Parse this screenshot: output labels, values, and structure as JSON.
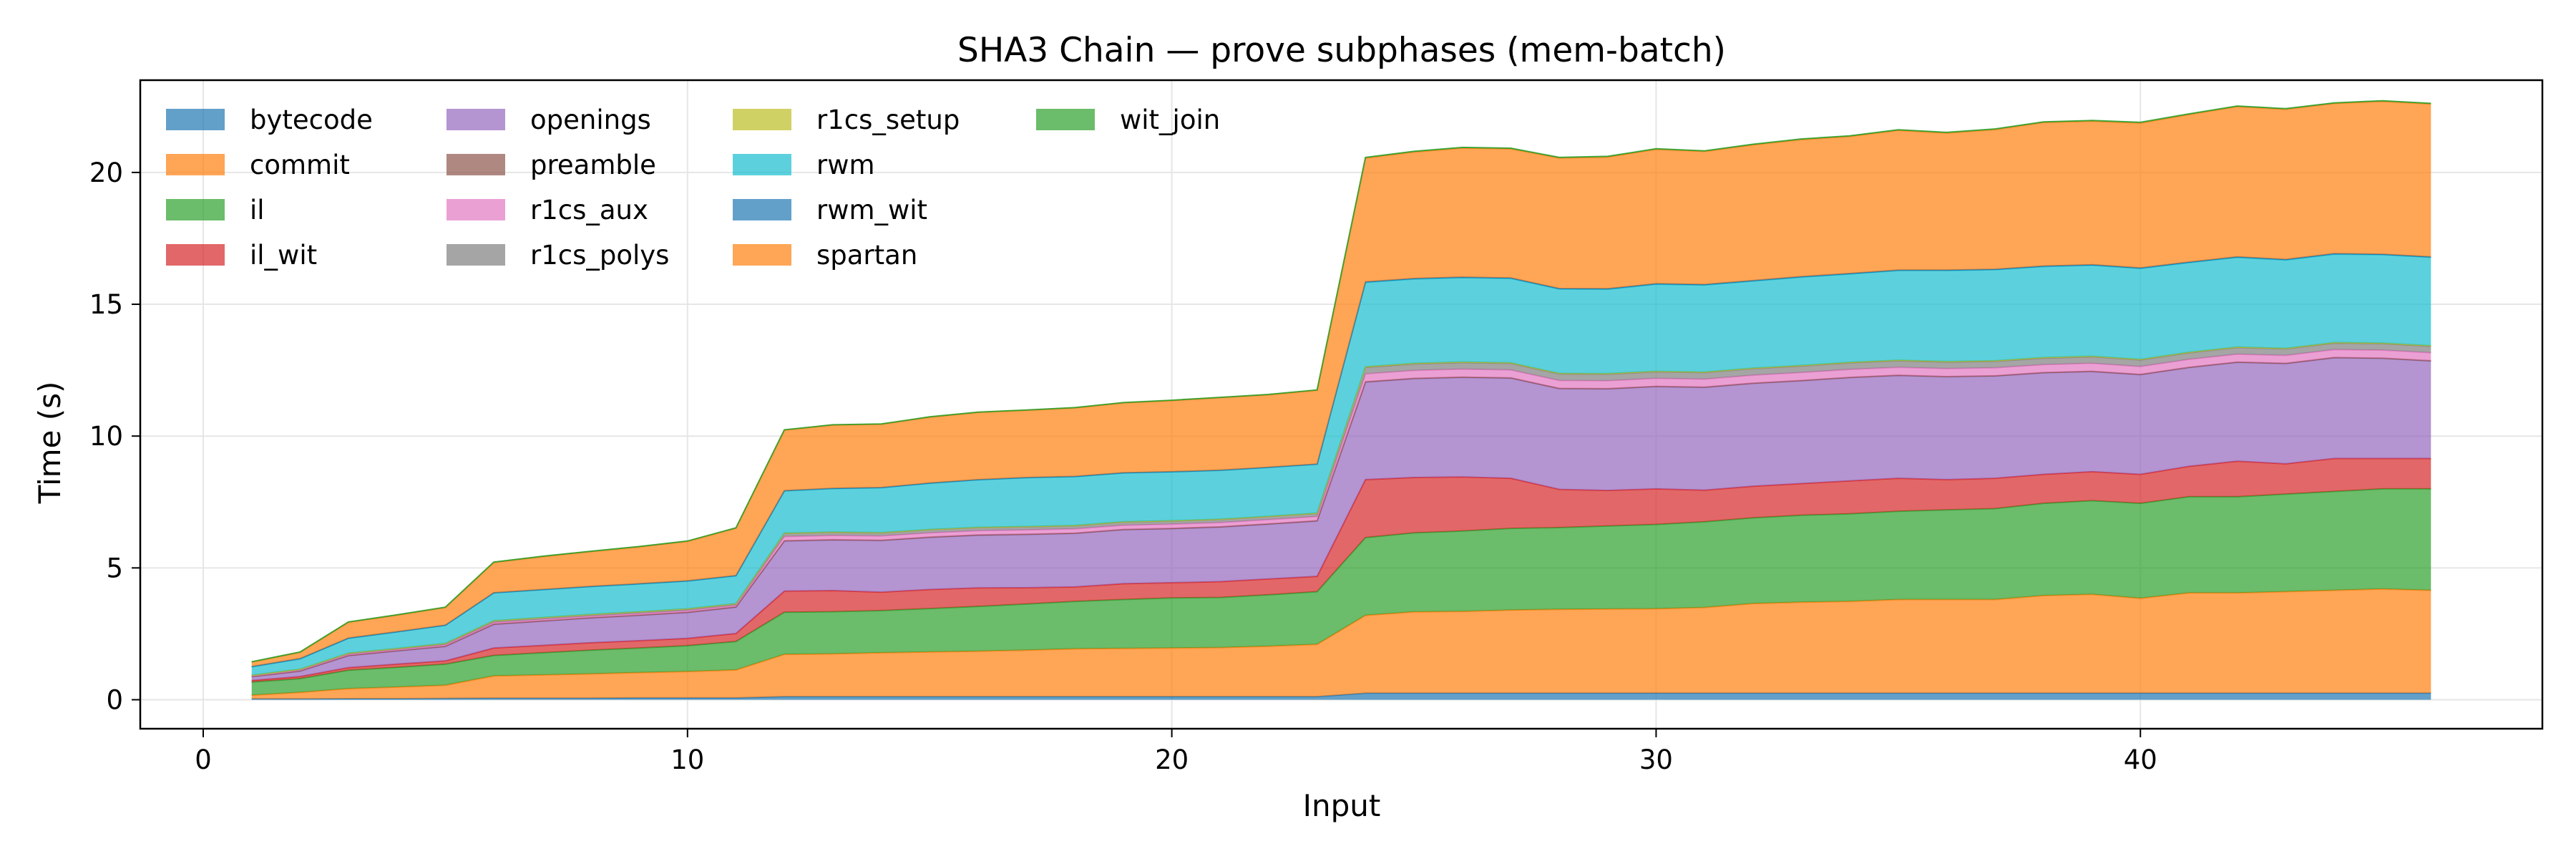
{
  "chart_data": {
    "type": "area",
    "stacked": true,
    "title": "SHA3 Chain — prove subphases (mem-batch)",
    "xlabel": "Input",
    "ylabel": "Time (s)",
    "xlim": [
      -1.3,
      48.3
    ],
    "ylim": [
      -1.1,
      23.5
    ],
    "xticks": [
      0,
      10,
      20,
      30,
      40
    ],
    "yticks": [
      0,
      5,
      10,
      15,
      20
    ],
    "grid": true,
    "legend_position": "top-left",
    "x": [
      1,
      2,
      3,
      4,
      5,
      6,
      7,
      8,
      9,
      10,
      11,
      12,
      13,
      14,
      15,
      16,
      17,
      18,
      19,
      20,
      21,
      22,
      23,
      24,
      25,
      26,
      27,
      28,
      29,
      30,
      31,
      32,
      33,
      34,
      35,
      36,
      37,
      38,
      39,
      40,
      41,
      42,
      43,
      44,
      45,
      46
    ],
    "series": [
      {
        "name": "bytecode",
        "color": "#1f77b4",
        "values": [
          0.03,
          0.03,
          0.04,
          0.04,
          0.05,
          0.06,
          0.06,
          0.06,
          0.07,
          0.07,
          0.07,
          0.12,
          0.12,
          0.12,
          0.12,
          0.12,
          0.12,
          0.12,
          0.12,
          0.12,
          0.12,
          0.12,
          0.12,
          0.25,
          0.25,
          0.25,
          0.25,
          0.25,
          0.25,
          0.25,
          0.25,
          0.25,
          0.25,
          0.25,
          0.25,
          0.25,
          0.25,
          0.25,
          0.25,
          0.25,
          0.25,
          0.25,
          0.25,
          0.25,
          0.25,
          0.25
        ]
      },
      {
        "name": "commit",
        "color": "#ff7f0e",
        "values": [
          0.14,
          0.25,
          0.38,
          0.44,
          0.5,
          0.84,
          0.88,
          0.92,
          0.96,
          1.0,
          1.06,
          1.6,
          1.62,
          1.66,
          1.69,
          1.72,
          1.76,
          1.81,
          1.83,
          1.84,
          1.86,
          1.91,
          1.98,
          2.95,
          3.08,
          3.1,
          3.15,
          3.18,
          3.19,
          3.2,
          3.25,
          3.4,
          3.45,
          3.48,
          3.55,
          3.55,
          3.55,
          3.7,
          3.75,
          3.6,
          3.8,
          3.8,
          3.85,
          3.9,
          3.95,
          3.9
        ]
      },
      {
        "name": "il",
        "color": "#2ca02c",
        "values": [
          0.5,
          0.52,
          0.7,
          0.75,
          0.8,
          0.78,
          0.84,
          0.9,
          0.93,
          0.98,
          1.08,
          1.6,
          1.6,
          1.6,
          1.65,
          1.7,
          1.75,
          1.8,
          1.85,
          1.9,
          1.9,
          1.95,
          2.0,
          2.95,
          3.0,
          3.05,
          3.1,
          3.1,
          3.15,
          3.2,
          3.25,
          3.25,
          3.3,
          3.32,
          3.35,
          3.4,
          3.45,
          3.5,
          3.55,
          3.6,
          3.65,
          3.65,
          3.7,
          3.75,
          3.8,
          3.85
        ]
      },
      {
        "name": "il_wit",
        "color": "#d62728",
        "values": [
          0.06,
          0.08,
          0.1,
          0.12,
          0.12,
          0.28,
          0.28,
          0.28,
          0.28,
          0.28,
          0.3,
          0.8,
          0.8,
          0.7,
          0.72,
          0.7,
          0.62,
          0.55,
          0.6,
          0.58,
          0.6,
          0.6,
          0.58,
          2.2,
          2.1,
          2.05,
          1.9,
          1.45,
          1.35,
          1.35,
          1.2,
          1.2,
          1.2,
          1.25,
          1.25,
          1.15,
          1.15,
          1.1,
          1.1,
          1.1,
          1.15,
          1.35,
          1.15,
          1.25,
          1.15,
          1.15
        ]
      },
      {
        "name": "openings",
        "color": "#9467bd",
        "values": [
          0.14,
          0.2,
          0.45,
          0.5,
          0.55,
          0.9,
          0.92,
          0.94,
          0.96,
          0.98,
          1.0,
          1.9,
          1.92,
          1.96,
          1.98,
          2.0,
          2.02,
          2.03,
          2.05,
          2.05,
          2.07,
          2.08,
          2.1,
          3.7,
          3.75,
          3.78,
          3.8,
          3.82,
          3.85,
          3.88,
          3.9,
          3.9,
          3.9,
          3.92,
          3.9,
          3.9,
          3.88,
          3.85,
          3.8,
          3.78,
          3.75,
          3.75,
          3.8,
          3.82,
          3.8,
          3.7
        ]
      },
      {
        "name": "preamble",
        "color": "#8c564b",
        "values": [
          0.01,
          0.01,
          0.01,
          0.01,
          0.01,
          0.01,
          0.01,
          0.01,
          0.01,
          0.01,
          0.01,
          0.01,
          0.01,
          0.01,
          0.01,
          0.01,
          0.01,
          0.01,
          0.01,
          0.01,
          0.01,
          0.01,
          0.01,
          0.01,
          0.01,
          0.01,
          0.01,
          0.01,
          0.01,
          0.01,
          0.01,
          0.01,
          0.01,
          0.01,
          0.01,
          0.01,
          0.01,
          0.01,
          0.01,
          0.01,
          0.01,
          0.01,
          0.01,
          0.01,
          0.01,
          0.01
        ]
      },
      {
        "name": "r1cs_aux",
        "color": "#e377c2",
        "values": [
          0.02,
          0.03,
          0.04,
          0.04,
          0.05,
          0.06,
          0.06,
          0.06,
          0.06,
          0.06,
          0.06,
          0.16,
          0.16,
          0.16,
          0.16,
          0.16,
          0.16,
          0.16,
          0.16,
          0.16,
          0.16,
          0.16,
          0.16,
          0.3,
          0.3,
          0.3,
          0.3,
          0.3,
          0.3,
          0.3,
          0.3,
          0.3,
          0.3,
          0.3,
          0.3,
          0.3,
          0.3,
          0.3,
          0.3,
          0.3,
          0.3,
          0.3,
          0.3,
          0.3,
          0.3,
          0.3
        ]
      },
      {
        "name": "r1cs_polys",
        "color": "#7f7f7f",
        "values": [
          0.02,
          0.03,
          0.04,
          0.04,
          0.05,
          0.06,
          0.06,
          0.06,
          0.06,
          0.06,
          0.06,
          0.12,
          0.12,
          0.12,
          0.12,
          0.12,
          0.12,
          0.12,
          0.12,
          0.12,
          0.12,
          0.12,
          0.12,
          0.25,
          0.25,
          0.25,
          0.25,
          0.25,
          0.25,
          0.25,
          0.25,
          0.25,
          0.25,
          0.25,
          0.25,
          0.25,
          0.25,
          0.25,
          0.25,
          0.25,
          0.25,
          0.25,
          0.25,
          0.25,
          0.25,
          0.25
        ]
      },
      {
        "name": "r1cs_setup",
        "color": "#bcbd22",
        "values": [
          0.01,
          0.01,
          0.01,
          0.01,
          0.01,
          0.01,
          0.01,
          0.01,
          0.01,
          0.01,
          0.01,
          0.01,
          0.01,
          0.01,
          0.01,
          0.01,
          0.01,
          0.01,
          0.01,
          0.01,
          0.01,
          0.01,
          0.01,
          0.02,
          0.02,
          0.02,
          0.02,
          0.02,
          0.02,
          0.02,
          0.02,
          0.02,
          0.02,
          0.02,
          0.02,
          0.02,
          0.02,
          0.02,
          0.02,
          0.02,
          0.02,
          0.02,
          0.02,
          0.02,
          0.02,
          0.02
        ]
      },
      {
        "name": "rwm",
        "color": "#17becf",
        "values": [
          0.32,
          0.39,
          0.56,
          0.62,
          0.68,
          1.05,
          1.05,
          1.05,
          1.05,
          1.05,
          1.05,
          1.6,
          1.65,
          1.7,
          1.75,
          1.8,
          1.85,
          1.85,
          1.85,
          1.85,
          1.85,
          1.85,
          1.85,
          3.2,
          3.2,
          3.2,
          3.2,
          3.2,
          3.2,
          3.3,
          3.3,
          3.3,
          3.35,
          3.35,
          3.4,
          3.45,
          3.45,
          3.45,
          3.45,
          3.45,
          3.4,
          3.4,
          3.35,
          3.35,
          3.35,
          3.35
        ]
      },
      {
        "name": "rwm_wit",
        "color": "#1f77b4",
        "values": [
          0.01,
          0.01,
          0.01,
          0.01,
          0.01,
          0.01,
          0.01,
          0.01,
          0.01,
          0.01,
          0.01,
          0.01,
          0.01,
          0.01,
          0.01,
          0.01,
          0.01,
          0.01,
          0.01,
          0.01,
          0.01,
          0.01,
          0.01,
          0.02,
          0.02,
          0.02,
          0.02,
          0.02,
          0.02,
          0.02,
          0.02,
          0.02,
          0.02,
          0.02,
          0.02,
          0.02,
          0.02,
          0.02,
          0.02,
          0.02,
          0.02,
          0.02,
          0.02,
          0.02,
          0.02,
          0.02
        ]
      },
      {
        "name": "spartan",
        "color": "#ff7f0e",
        "values": [
          0.17,
          0.24,
          0.6,
          0.63,
          0.67,
          1.15,
          1.25,
          1.32,
          1.4,
          1.5,
          1.8,
          2.3,
          2.4,
          2.4,
          2.5,
          2.55,
          2.55,
          2.6,
          2.65,
          2.7,
          2.75,
          2.75,
          2.8,
          4.7,
          4.8,
          4.9,
          4.9,
          4.95,
          5.0,
          5.1,
          5.05,
          5.15,
          5.2,
          5.2,
          5.3,
          5.2,
          5.3,
          5.45,
          5.45,
          5.5,
          5.6,
          5.7,
          5.7,
          5.7,
          5.8,
          5.8
        ]
      },
      {
        "name": "wit_join",
        "color": "#2ca02c",
        "values": [
          0.01,
          0.01,
          0.01,
          0.01,
          0.01,
          0.01,
          0.01,
          0.01,
          0.01,
          0.01,
          0.01,
          0.01,
          0.01,
          0.01,
          0.01,
          0.01,
          0.01,
          0.01,
          0.01,
          0.01,
          0.01,
          0.01,
          0.01,
          0.02,
          0.02,
          0.02,
          0.02,
          0.02,
          0.02,
          0.02,
          0.02,
          0.02,
          0.02,
          0.02,
          0.02,
          0.02,
          0.02,
          0.02,
          0.02,
          0.02,
          0.02,
          0.02,
          0.02,
          0.02,
          0.02,
          0.02
        ]
      }
    ]
  }
}
